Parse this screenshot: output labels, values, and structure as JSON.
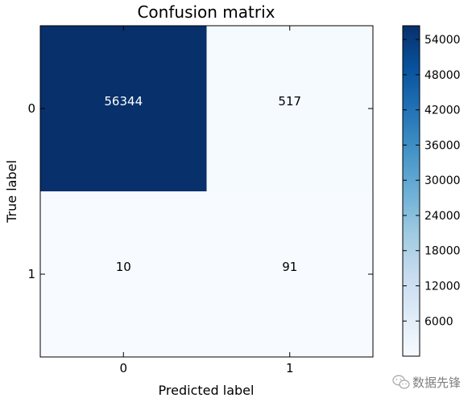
{
  "chart_data": {
    "type": "heatmap",
    "title": "Confusion matrix",
    "xlabel": "Predicted label",
    "ylabel": "True label",
    "x_categories": [
      "0",
      "1"
    ],
    "y_categories": [
      "0",
      "1"
    ],
    "values": [
      [
        56344,
        517
      ],
      [
        10,
        91
      ]
    ],
    "cell_labels": [
      [
        "56344",
        "517"
      ],
      [
        "10",
        "91"
      ]
    ],
    "colormap": "Blues",
    "color_low": "#f7fbff",
    "color_high": "#08306b",
    "colorbar": {
      "ticks": [
        6000,
        12000,
        18000,
        24000,
        30000,
        36000,
        42000,
        48000,
        54000
      ],
      "tick_labels": [
        "6000",
        "12000",
        "18000",
        "24000",
        "30000",
        "36000",
        "42000",
        "48000",
        "54000"
      ],
      "range": [
        10,
        56344
      ]
    }
  },
  "watermark": {
    "text": "数据先锋",
    "icon": "wechat-icon"
  }
}
